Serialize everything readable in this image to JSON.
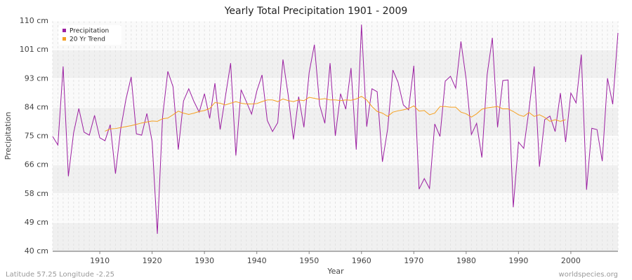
{
  "chart_data": {
    "type": "line",
    "title": "Yearly Total Precipitation 1901 - 2009",
    "xlabel": "Year",
    "ylabel": "Precipitation",
    "footer_left": "Latitude 57.25 Longitude -2.25",
    "footer_right": "worldspecies.org",
    "legend": "top-left",
    "grid": true,
    "x": [
      1901,
      1902,
      1903,
      1904,
      1905,
      1906,
      1907,
      1908,
      1909,
      1910,
      1911,
      1912,
      1913,
      1914,
      1915,
      1916,
      1917,
      1918,
      1919,
      1920,
      1921,
      1922,
      1923,
      1924,
      1925,
      1926,
      1927,
      1928,
      1929,
      1930,
      1931,
      1932,
      1933,
      1934,
      1935,
      1936,
      1937,
      1938,
      1939,
      1940,
      1941,
      1942,
      1943,
      1944,
      1945,
      1946,
      1947,
      1948,
      1949,
      1950,
      1951,
      1952,
      1953,
      1954,
      1955,
      1956,
      1957,
      1958,
      1959,
      1960,
      1961,
      1962,
      1963,
      1964,
      1965,
      1966,
      1967,
      1968,
      1969,
      1970,
      1971,
      1972,
      1973,
      1974,
      1975,
      1976,
      1977,
      1978,
      1979,
      1980,
      1981,
      1982,
      1983,
      1984,
      1985,
      1986,
      1987,
      1988,
      1989,
      1990,
      1991,
      1992,
      1993,
      1994,
      1995,
      1996,
      1997,
      1998,
      1999,
      2000,
      2001,
      2002,
      2003,
      2004,
      2005,
      2006,
      2007,
      2008,
      2009
    ],
    "series": [
      {
        "name": "Precipitation",
        "color": "#9b1fa1",
        "values": [
          74.9,
          72.3,
          96.2,
          62.8,
          76.0,
          83.4,
          76.2,
          75.3,
          81.3,
          74.5,
          73.6,
          78.5,
          63.6,
          77.2,
          86.2,
          93.0,
          75.7,
          75.3,
          81.9,
          73.4,
          45.3,
          80.9,
          94.7,
          90.0,
          70.9,
          85.7,
          89.4,
          85.5,
          82.3,
          87.9,
          80.4,
          91.1,
          77.0,
          87.0,
          97.2,
          69.1,
          89.1,
          85.5,
          81.7,
          88.7,
          93.6,
          79.8,
          76.4,
          79.1,
          98.3,
          87.4,
          74.0,
          87.0,
          77.7,
          94.3,
          102.8,
          84.5,
          78.9,
          97.2,
          75.1,
          87.9,
          83.2,
          95.7,
          70.9,
          108.9,
          77.9,
          89.4,
          88.5,
          67.2,
          77.2,
          95.1,
          91.3,
          84.5,
          83.0,
          96.4,
          58.9,
          62.1,
          59.1,
          78.7,
          74.9,
          91.7,
          93.2,
          89.6,
          103.8,
          92.3,
          75.5,
          78.9,
          68.5,
          93.6,
          104.9,
          77.7,
          91.9,
          92.1,
          53.4,
          73.2,
          71.3,
          83.0,
          96.2,
          65.7,
          80.0,
          81.1,
          76.4,
          88.1,
          73.2,
          88.1,
          85.1,
          99.8,
          58.7,
          77.4,
          77.0,
          67.4,
          92.6,
          84.7,
          106.4
        ]
      },
      {
        "name": "20 Yr Trend",
        "color": "#f5a020",
        "values": [
          null,
          null,
          null,
          null,
          null,
          null,
          null,
          null,
          null,
          null,
          76.5,
          77.2,
          77.3,
          77.6,
          77.9,
          78.2,
          78.6,
          79.0,
          79.3,
          79.6,
          79.5,
          80.3,
          80.5,
          81.5,
          82.6,
          82.0,
          81.6,
          82.0,
          82.5,
          82.8,
          83.4,
          85.2,
          85.0,
          84.5,
          85.0,
          85.5,
          85.0,
          84.8,
          84.8,
          84.9,
          85.5,
          86.0,
          86.0,
          85.5,
          86.3,
          85.8,
          85.5,
          86.0,
          85.8,
          86.8,
          86.5,
          86.2,
          86.4,
          86.0,
          86.0,
          85.8,
          86.0,
          85.9,
          86.3,
          87.1,
          86.0,
          84.0,
          82.5,
          82.0,
          81.0,
          82.3,
          82.7,
          83.0,
          83.4,
          84.2,
          82.6,
          82.8,
          81.5,
          82.0,
          84.0,
          84.0,
          83.8,
          83.8,
          82.3,
          81.8,
          80.8,
          81.8,
          83.2,
          83.6,
          83.8,
          84.0,
          83.3,
          83.3,
          82.5,
          81.5,
          81.0,
          82.2,
          81.0,
          81.5,
          80.7,
          79.5,
          80.0,
          79.5,
          80.0,
          null,
          null,
          null,
          null,
          null,
          null,
          null,
          null,
          null,
          null
        ]
      }
    ],
    "xlim": [
      1901,
      2009
    ],
    "xticks": [
      1910,
      1920,
      1930,
      1940,
      1950,
      1960,
      1970,
      1980,
      1990,
      2000
    ],
    "ylim": [
      40,
      110
    ],
    "yticks": [
      {
        "value": 40,
        "label": "40 cm"
      },
      {
        "value": 48.75,
        "label": "49 cm"
      },
      {
        "value": 57.5,
        "label": "58 cm"
      },
      {
        "value": 66.25,
        "label": "66 cm"
      },
      {
        "value": 75,
        "label": "75 cm"
      },
      {
        "value": 83.75,
        "label": "84 cm"
      },
      {
        "value": 92.5,
        "label": "93 cm"
      },
      {
        "value": 101.25,
        "label": "101 cm"
      },
      {
        "value": 110,
        "label": "110 cm"
      }
    ]
  }
}
